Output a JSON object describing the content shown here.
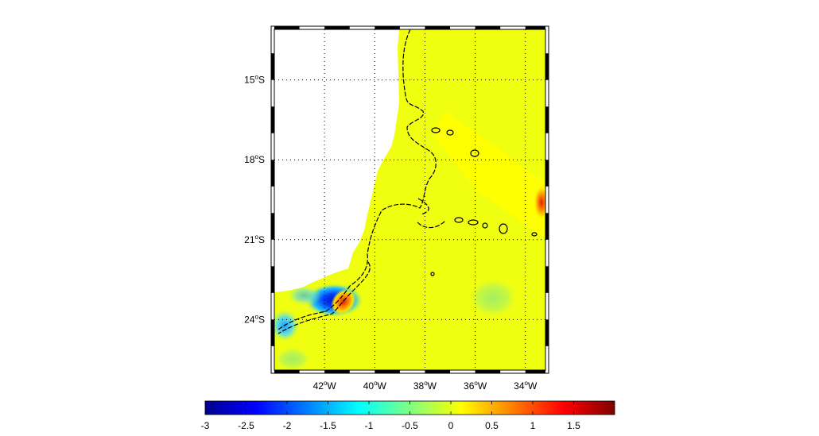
{
  "map": {
    "lon_ticks": [
      {
        "value": -42,
        "label": "42",
        "hem": "W"
      },
      {
        "value": -40,
        "label": "40",
        "hem": "W"
      },
      {
        "value": -38,
        "label": "38",
        "hem": "W"
      },
      {
        "value": -36,
        "label": "36",
        "hem": "W"
      },
      {
        "value": -34,
        "label": "34",
        "hem": "W"
      }
    ],
    "lat_ticks": [
      {
        "value": -15,
        "label": "15",
        "hem": "S"
      },
      {
        "value": -18,
        "label": "18",
        "hem": "S"
      },
      {
        "value": -21,
        "label": "21",
        "hem": "S"
      },
      {
        "value": -24,
        "label": "24",
        "hem": "S"
      }
    ],
    "degree_symbol": "o",
    "lon_range": [
      -44.0,
      -33.2
    ],
    "lat_range": [
      -13.1,
      -25.9
    ],
    "grid": "dotted",
    "land_color": "#ffffff",
    "contours": "dashed black"
  },
  "colorbar": {
    "colormap": "jet",
    "range": [
      -3,
      2
    ],
    "ticks": [
      {
        "value": -3,
        "label": "-3"
      },
      {
        "value": -2.5,
        "label": "-2.5"
      },
      {
        "value": -2,
        "label": "-2"
      },
      {
        "value": -1.5,
        "label": "-1.5"
      },
      {
        "value": -1,
        "label": "-1"
      },
      {
        "value": -0.5,
        "label": "-0.5"
      },
      {
        "value": 0,
        "label": "0"
      },
      {
        "value": 0.5,
        "label": "0.5"
      },
      {
        "value": 1,
        "label": "1"
      },
      {
        "value": 1.5,
        "label": "1.5"
      }
    ],
    "placement": "bottom"
  }
}
